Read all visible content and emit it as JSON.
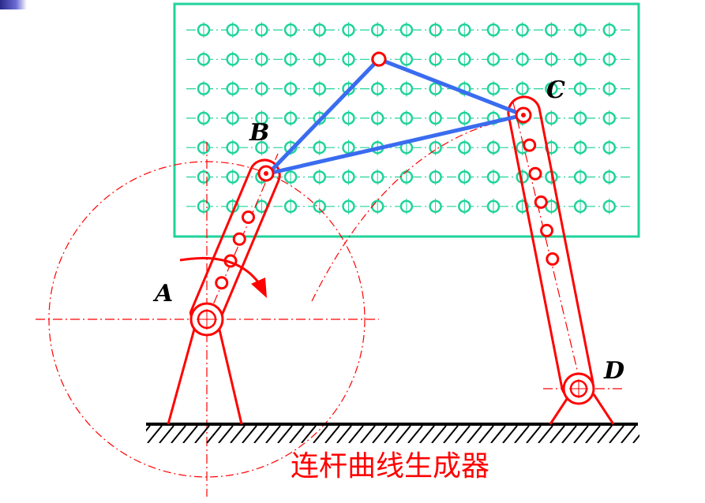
{
  "labels": {
    "A": "A",
    "B": "B",
    "C": "C",
    "D": "D"
  },
  "caption": "连杆曲线生成器",
  "colors": {
    "grid": "#1fd39a",
    "mechanism": "#ff0000",
    "triangle": "#3a6cf0",
    "label": "#000000",
    "corner": "#3a3aa8"
  },
  "grid": {
    "columns": 15,
    "rows": 7
  },
  "bar_cd_holes": 5,
  "bar_ab_holes": 4
}
